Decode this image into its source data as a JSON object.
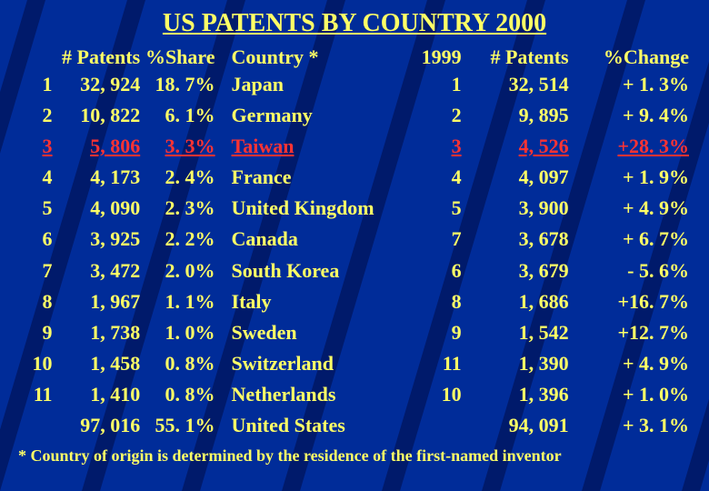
{
  "background": {
    "base_color": "#001a6b",
    "accent_color": "#003cc0",
    "accent_opacity": 0.55
  },
  "title": {
    "text": "US PATENTS BY COUNTRY 2000",
    "color": "#ffff66",
    "fontsize": 28
  },
  "table": {
    "header_color": "#ffff66",
    "row_color": "#ffff66",
    "highlight_color": "#ff3333",
    "row_fontsize": 22,
    "line_height": 1.55,
    "columns": [
      {
        "key": "rank",
        "label": "",
        "class": "col-rank"
      },
      {
        "key": "patents",
        "label": "# Patents",
        "class": "col-patents"
      },
      {
        "key": "share",
        "label": "%Share",
        "class": "col-share"
      },
      {
        "key": "country",
        "label": "Country *",
        "class": "col-country"
      },
      {
        "key": "rank_1999",
        "label": "1999",
        "class": "col-rank99"
      },
      {
        "key": "patents_1999",
        "label": "# Patents",
        "class": "col-pat99"
      },
      {
        "key": "change",
        "label": "%Change",
        "class": "col-change"
      }
    ],
    "rows": [
      {
        "rank": "1",
        "patents": "32, 924",
        "share": "18. 7%",
        "country": "Japan",
        "rank_1999": "1",
        "patents_1999": "32, 514",
        "change": "+ 1. 3%",
        "highlight": false
      },
      {
        "rank": "2",
        "patents": "10, 822",
        "share": "6. 1%",
        "country": "Germany",
        "rank_1999": "2",
        "patents_1999": "9, 895",
        "change": "+ 9. 4%",
        "highlight": false
      },
      {
        "rank": "3",
        "patents": "5, 806",
        "share": "3. 3%",
        "country": "Taiwan",
        "rank_1999": "3",
        "patents_1999": "4, 526",
        "change": "+28. 3%",
        "highlight": true
      },
      {
        "rank": "4",
        "patents": "4, 173",
        "share": "2. 4%",
        "country": "France",
        "rank_1999": "4",
        "patents_1999": "4, 097",
        "change": "+ 1. 9%",
        "highlight": false
      },
      {
        "rank": "5",
        "patents": "4, 090",
        "share": "2. 3%",
        "country": "United Kingdom",
        "rank_1999": "5",
        "patents_1999": "3, 900",
        "change": "+ 4. 9%",
        "highlight": false
      },
      {
        "rank": "6",
        "patents": "3, 925",
        "share": "2. 2%",
        "country": "Canada",
        "rank_1999": "7",
        "patents_1999": "3, 678",
        "change": "+ 6. 7%",
        "highlight": false
      },
      {
        "rank": "7",
        "patents": "3, 472",
        "share": "2. 0%",
        "country": "South Korea",
        "rank_1999": "6",
        "patents_1999": "3, 679",
        "change": "- 5. 6%",
        "highlight": false
      },
      {
        "rank": "8",
        "patents": "1, 967",
        "share": "1. 1%",
        "country": "Italy",
        "rank_1999": "8",
        "patents_1999": "1, 686",
        "change": "+16. 7%",
        "highlight": false
      },
      {
        "rank": "9",
        "patents": "1, 738",
        "share": "1. 0%",
        "country": "Sweden",
        "rank_1999": "9",
        "patents_1999": "1, 542",
        "change": "+12. 7%",
        "highlight": false
      },
      {
        "rank": "10",
        "patents": "1, 458",
        "share": "0. 8%",
        "country": "Switzerland",
        "rank_1999": "11",
        "patents_1999": "1, 390",
        "change": "+ 4. 9%",
        "highlight": false
      },
      {
        "rank": "11",
        "patents": "1, 410",
        "share": "0. 8%",
        "country": "Netherlands",
        "rank_1999": "10",
        "patents_1999": "1, 396",
        "change": "+ 1. 0%",
        "highlight": false
      },
      {
        "rank": "",
        "patents": "97, 016",
        "share": "55. 1%",
        "country": "United States",
        "rank_1999": "",
        "patents_1999": "94, 091",
        "change": "+ 3. 1%",
        "highlight": false
      }
    ]
  },
  "footnote": {
    "text": "* Country of origin is determined by the residence of the first-named inventor",
    "color": "#ffff66",
    "fontsize": 18
  }
}
